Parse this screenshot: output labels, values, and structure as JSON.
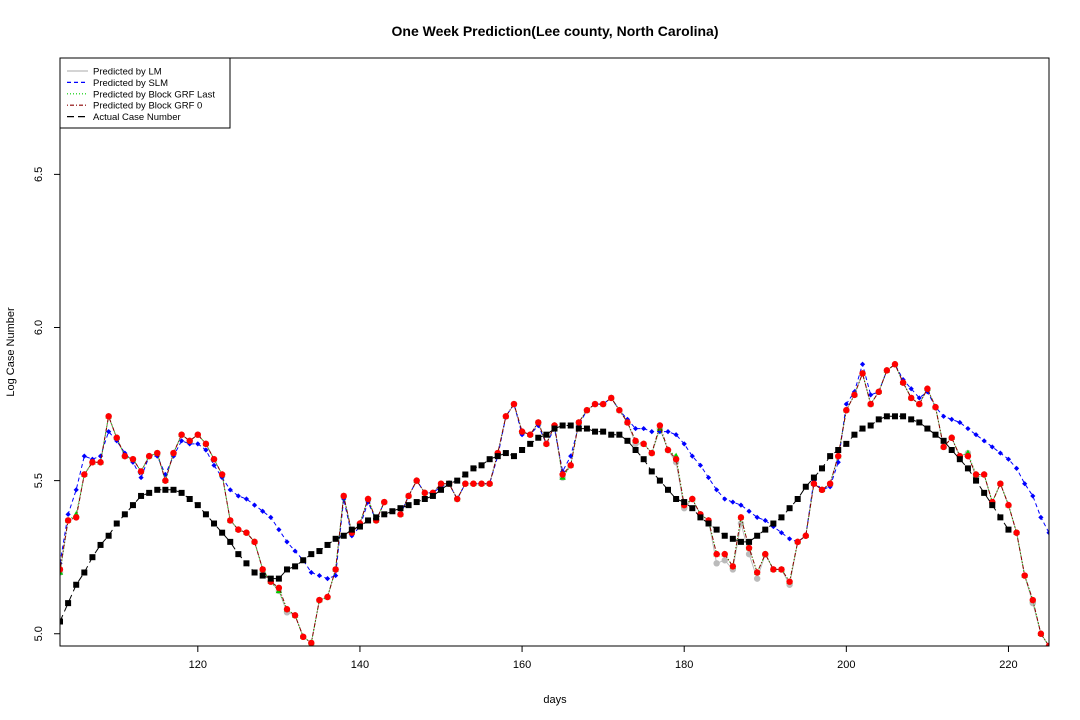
{
  "chart_data": {
    "type": "line",
    "title": "One Week Prediction(Lee county, North Carolina)",
    "xlabel": "days",
    "ylabel": "Log Case Number",
    "xlim": [
      103,
      225
    ],
    "ylim": [
      4.96,
      6.88
    ],
    "xticks": [
      120,
      140,
      160,
      180,
      200,
      220
    ],
    "yticks": [
      5.0,
      5.5,
      6.0,
      6.5
    ],
    "legend_position": "top-left",
    "x": [
      103,
      104,
      105,
      106,
      107,
      108,
      109,
      110,
      111,
      112,
      113,
      114,
      115,
      116,
      117,
      118,
      119,
      120,
      121,
      122,
      123,
      124,
      125,
      126,
      127,
      128,
      129,
      130,
      131,
      132,
      133,
      134,
      135,
      136,
      137,
      138,
      139,
      140,
      141,
      142,
      143,
      144,
      145,
      146,
      147,
      148,
      149,
      150,
      151,
      152,
      153,
      154,
      155,
      156,
      157,
      158,
      159,
      160,
      161,
      162,
      163,
      164,
      165,
      166,
      167,
      168,
      169,
      170,
      171,
      172,
      173,
      174,
      175,
      176,
      177,
      178,
      179,
      180,
      181,
      182,
      183,
      184,
      185,
      186,
      187,
      188,
      189,
      190,
      191,
      192,
      193,
      194,
      195,
      196,
      197,
      198,
      199,
      200,
      201,
      202,
      203,
      204,
      205,
      206,
      207,
      208,
      209,
      210,
      211,
      212,
      213,
      214,
      215,
      216,
      217,
      218,
      219,
      220,
      221,
      222,
      223,
      224,
      225
    ],
    "series": [
      {
        "name": "Predicted by LM",
        "color": "#bbbbbb",
        "style": "solid",
        "marker": "circle",
        "values": [
          5.2,
          5.37,
          5.38,
          5.52,
          5.56,
          5.56,
          5.71,
          5.64,
          5.58,
          5.57,
          5.53,
          5.58,
          5.59,
          5.5,
          5.59,
          5.65,
          5.63,
          5.65,
          5.62,
          5.57,
          5.52,
          5.37,
          5.34,
          5.33,
          5.3,
          5.21,
          5.17,
          5.14,
          5.07,
          5.06,
          4.99,
          4.97,
          5.11,
          5.12,
          5.21,
          5.45,
          5.33,
          5.36,
          5.44,
          5.37,
          5.43,
          null,
          5.39,
          5.45,
          5.5,
          5.46,
          5.46,
          5.49,
          5.49,
          5.44,
          5.49,
          5.49,
          5.49,
          5.49,
          5.59,
          5.71,
          5.75,
          5.66,
          5.65,
          5.69,
          5.62,
          5.68,
          5.51,
          5.55,
          5.69,
          5.73,
          5.75,
          5.75,
          5.77,
          5.73,
          5.69,
          5.62,
          5.62,
          5.59,
          5.67,
          5.6,
          5.56,
          5.41,
          5.44,
          5.39,
          5.37,
          5.23,
          5.24,
          5.21,
          5.36,
          5.26,
          5.18,
          5.26,
          5.21,
          5.21,
          5.16,
          5.3,
          5.32,
          5.49,
          5.47,
          5.49,
          5.58,
          5.73,
          5.78,
          5.85,
          5.75,
          5.79,
          5.86,
          5.88,
          5.82,
          5.77,
          5.75,
          5.8,
          5.74,
          5.61,
          5.64,
          5.58,
          5.59,
          5.51,
          5.52,
          5.43,
          5.49,
          5.42,
          5.33,
          5.19,
          5.1,
          5.0,
          4.96
        ]
      },
      {
        "name": "Predicted by SLM",
        "color": "#0000ff",
        "style": "dashed",
        "marker": "diamond",
        "values": [
          5.23,
          5.39,
          5.47,
          5.58,
          5.57,
          5.58,
          5.66,
          5.63,
          5.59,
          5.56,
          5.51,
          5.58,
          5.58,
          5.52,
          5.58,
          5.63,
          5.62,
          5.62,
          5.6,
          5.55,
          5.51,
          5.47,
          5.45,
          5.44,
          5.42,
          5.4,
          5.38,
          5.34,
          5.3,
          5.27,
          5.24,
          5.2,
          5.19,
          5.18,
          5.19,
          5.44,
          5.32,
          5.35,
          5.43,
          5.37,
          5.43,
          null,
          5.39,
          5.45,
          5.5,
          5.46,
          5.46,
          5.48,
          5.49,
          5.44,
          5.49,
          5.49,
          5.49,
          5.49,
          5.58,
          5.71,
          5.75,
          5.65,
          5.65,
          5.68,
          5.62,
          5.67,
          5.53,
          5.58,
          5.68,
          5.73,
          5.75,
          5.75,
          5.77,
          5.73,
          5.7,
          5.67,
          5.67,
          5.66,
          5.66,
          5.66,
          5.65,
          5.62,
          5.58,
          5.55,
          5.51,
          5.47,
          5.44,
          5.43,
          5.42,
          5.4,
          5.38,
          5.37,
          5.35,
          5.33,
          5.31,
          5.3,
          5.32,
          5.5,
          5.47,
          5.48,
          5.56,
          5.75,
          5.79,
          5.88,
          5.78,
          5.79,
          5.86,
          5.88,
          5.83,
          5.8,
          5.77,
          5.79,
          5.74,
          5.71,
          5.7,
          5.69,
          5.67,
          5.65,
          5.63,
          5.61,
          5.59,
          5.57,
          5.54,
          5.49,
          5.45,
          5.38,
          5.33
        ]
      },
      {
        "name": "Predicted by Block GRF Last",
        "color": "#00cc00",
        "style": "dotted",
        "marker": "triangle",
        "values": [
          5.2,
          5.37,
          5.39,
          5.52,
          5.56,
          5.56,
          5.71,
          5.64,
          5.58,
          5.57,
          5.53,
          5.58,
          5.59,
          5.5,
          5.59,
          5.65,
          5.63,
          5.65,
          5.62,
          5.57,
          5.52,
          5.37,
          5.34,
          5.33,
          5.3,
          5.21,
          5.17,
          5.14,
          5.08,
          5.06,
          4.99,
          4.97,
          5.11,
          5.12,
          5.21,
          5.45,
          5.33,
          5.36,
          5.44,
          5.37,
          5.43,
          null,
          5.39,
          5.45,
          5.5,
          5.46,
          5.46,
          5.49,
          5.49,
          5.44,
          5.49,
          5.49,
          5.49,
          5.49,
          5.59,
          5.71,
          5.75,
          5.66,
          5.65,
          5.69,
          5.62,
          5.68,
          5.51,
          5.55,
          5.69,
          5.73,
          5.75,
          5.75,
          5.77,
          5.73,
          5.69,
          5.63,
          5.62,
          5.59,
          5.67,
          5.6,
          5.58,
          5.42,
          5.44,
          5.39,
          5.37,
          5.26,
          5.26,
          5.22,
          5.38,
          5.28,
          5.2,
          5.26,
          5.21,
          5.21,
          5.17,
          5.3,
          5.32,
          5.49,
          5.47,
          5.49,
          5.58,
          5.73,
          5.78,
          5.85,
          5.75,
          5.79,
          5.86,
          5.88,
          5.82,
          5.77,
          5.75,
          5.8,
          5.74,
          5.61,
          5.64,
          5.58,
          5.59,
          5.52,
          5.52,
          5.43,
          5.49,
          5.42,
          5.33,
          5.19,
          5.11,
          5.0,
          4.96
        ]
      },
      {
        "name": "Predicted by Block GRF 0",
        "color": "#ff0000",
        "line_color": "#8b0000",
        "style": "dotdash",
        "marker": "circle",
        "values": [
          5.21,
          5.37,
          5.38,
          5.52,
          5.56,
          5.56,
          5.71,
          5.64,
          5.58,
          5.57,
          5.53,
          5.58,
          5.59,
          5.5,
          5.59,
          5.65,
          5.63,
          5.65,
          5.62,
          5.57,
          5.52,
          5.37,
          5.34,
          5.33,
          5.3,
          5.21,
          5.17,
          5.15,
          5.08,
          5.06,
          4.99,
          4.97,
          5.11,
          5.12,
          5.21,
          5.45,
          5.33,
          5.36,
          5.44,
          5.37,
          5.43,
          null,
          5.39,
          5.45,
          5.5,
          5.46,
          5.46,
          5.49,
          5.49,
          5.44,
          5.49,
          5.49,
          5.49,
          5.49,
          5.59,
          5.71,
          5.75,
          5.66,
          5.65,
          5.69,
          5.62,
          5.68,
          5.52,
          5.55,
          5.69,
          5.73,
          5.75,
          5.75,
          5.77,
          5.73,
          5.69,
          5.63,
          5.62,
          5.59,
          5.68,
          5.6,
          5.57,
          5.42,
          5.44,
          5.39,
          5.37,
          5.26,
          5.26,
          5.22,
          5.38,
          5.28,
          5.2,
          5.26,
          5.21,
          5.21,
          5.17,
          5.3,
          5.32,
          5.49,
          5.47,
          5.49,
          5.58,
          5.73,
          5.78,
          5.85,
          5.75,
          5.79,
          5.86,
          5.88,
          5.82,
          5.77,
          5.75,
          5.8,
          5.74,
          5.61,
          5.64,
          5.58,
          5.58,
          5.52,
          5.52,
          5.43,
          5.49,
          5.42,
          5.33,
          5.19,
          5.11,
          5.0,
          4.96
        ]
      },
      {
        "name": "Actual Case Number",
        "color": "#000000",
        "style": "longdash",
        "marker": "square",
        "values": [
          5.04,
          5.1,
          5.16,
          5.2,
          5.25,
          5.29,
          5.32,
          5.36,
          5.39,
          5.42,
          5.45,
          5.46,
          5.47,
          5.47,
          5.47,
          5.46,
          5.44,
          5.42,
          5.39,
          5.36,
          5.33,
          5.3,
          5.26,
          5.23,
          5.2,
          5.19,
          5.18,
          5.18,
          5.21,
          5.22,
          5.24,
          5.26,
          5.27,
          5.29,
          5.31,
          5.32,
          5.34,
          5.35,
          5.37,
          5.38,
          5.39,
          5.4,
          5.41,
          5.42,
          5.43,
          5.44,
          5.45,
          5.47,
          5.49,
          5.5,
          5.52,
          5.54,
          5.55,
          5.57,
          5.58,
          5.59,
          5.58,
          5.6,
          5.62,
          5.64,
          5.65,
          5.67,
          5.68,
          5.68,
          5.67,
          5.67,
          5.66,
          5.66,
          5.65,
          5.65,
          5.63,
          5.6,
          5.57,
          5.53,
          5.5,
          5.47,
          5.44,
          5.43,
          5.41,
          5.38,
          5.36,
          5.34,
          5.32,
          5.31,
          5.3,
          5.3,
          5.32,
          5.34,
          5.36,
          5.38,
          5.41,
          5.44,
          5.48,
          5.51,
          5.54,
          5.58,
          5.6,
          5.62,
          5.65,
          5.67,
          5.68,
          5.7,
          5.71,
          5.71,
          5.71,
          5.7,
          5.69,
          5.67,
          5.65,
          5.63,
          5.6,
          5.57,
          5.54,
          5.5,
          5.46,
          5.42,
          5.38,
          5.34,
          null,
          null,
          null,
          null,
          null
        ]
      }
    ]
  }
}
